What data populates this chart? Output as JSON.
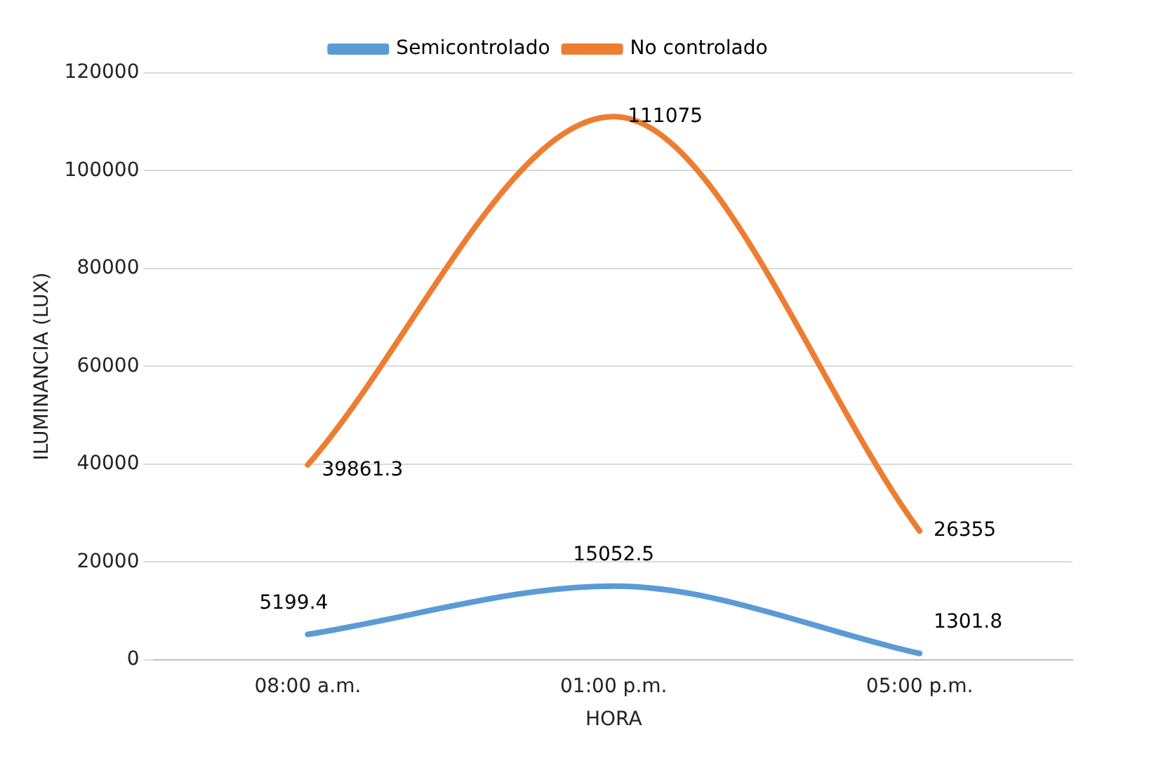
{
  "chart_data": {
    "type": "line",
    "xlabel": "HORA",
    "ylabel": "ILUMINANCIA (LUX)",
    "categories": [
      "08:00 a.m.",
      "01:00 p.m.",
      "05:00 p.m."
    ],
    "series": [
      {
        "name": "Semicontrolado",
        "color": "#5b9bd5",
        "values": [
          5199.4,
          15052.5,
          1301.8
        ]
      },
      {
        "name": "No controlado",
        "color": "#ed7d31",
        "values": [
          39861.3,
          111075,
          26355
        ]
      }
    ],
    "ylim": [
      0,
      120000
    ],
    "yticks": [
      0,
      20000,
      40000,
      60000,
      80000,
      100000,
      120000
    ],
    "grid": "y",
    "legend": "top",
    "marker": "none",
    "line_style": "solid",
    "data_labels": true
  }
}
